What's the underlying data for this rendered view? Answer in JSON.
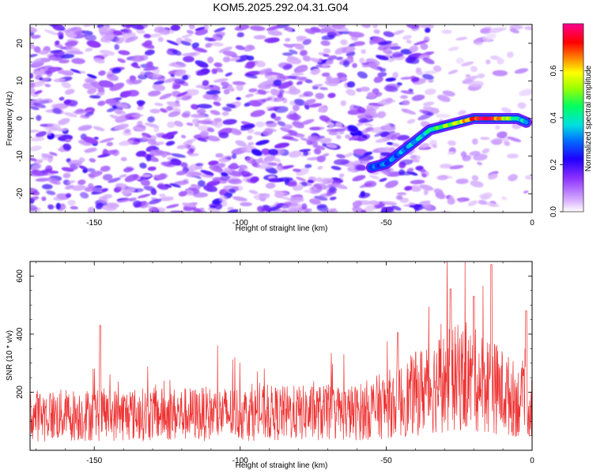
{
  "title": "KOM5.2025.292.04.31.G04",
  "chart_data": [
    {
      "type": "heatmap",
      "name": "spectrogram",
      "xlabel": "Height of straight line (km)",
      "ylabel": "Frequency (Hz)",
      "xlim": [
        -172,
        0
      ],
      "ylim": [
        -25,
        25
      ],
      "xticks": [
        -150,
        -100,
        -50,
        0
      ],
      "xtick_labels": [
        "-150",
        "-100",
        "-50",
        "0"
      ],
      "yticks": [
        -20,
        -10,
        0,
        10,
        20
      ],
      "ytick_labels": [
        "-20",
        "-10",
        "0",
        "10",
        "20"
      ],
      "colorbar": {
        "label": "Normalized spectral amplitude",
        "range": [
          0.0,
          0.8
        ],
        "ticks": [
          0.0,
          0.2,
          0.4,
          0.6
        ],
        "tick_labels": [
          "0.0",
          "0.2",
          "0.4",
          "0.6"
        ],
        "colors": [
          "#ffffff",
          "#c080ff",
          "#6000ff",
          "#0000ff",
          "#00c0ff",
          "#00ff80",
          "#80ff00",
          "#ffff00",
          "#ff8000",
          "#ff0000",
          "#ff0080"
        ]
      },
      "ridge": {
        "x": [
          -55,
          -50,
          -45,
          -40,
          -35,
          -30,
          -25,
          -20,
          -15,
          -10,
          -5,
          -2
        ],
        "y": [
          -13,
          -12,
          -9,
          -6,
          -3,
          -2,
          -1,
          0,
          0,
          0,
          0,
          -1
        ],
        "amplitude": [
          0.25,
          0.28,
          0.3,
          0.35,
          0.4,
          0.5,
          0.55,
          0.7,
          0.78,
          0.6,
          0.4,
          0.35
        ]
      },
      "noise_amplitude_range": [
        0.05,
        0.22
      ]
    },
    {
      "type": "line",
      "name": "snr",
      "xlabel": "Height of straight line (km)",
      "ylabel": "SNR (10 * v/v)",
      "xlim": [
        -172,
        0
      ],
      "ylim": [
        0,
        650
      ],
      "xticks": [
        -150,
        -100,
        -50,
        0
      ],
      "xtick_labels": [
        "-150",
        "-100",
        "-50",
        "0"
      ],
      "yticks": [
        200,
        400,
        600
      ],
      "ytick_labels": [
        "200",
        "400",
        "600"
      ],
      "series": [
        {
          "name": "SNR",
          "color": "#ee3333",
          "baseline": [
            [
              -172,
              120
            ],
            [
              -60,
              130
            ],
            [
              -45,
              170
            ],
            [
              -35,
              220
            ],
            [
              -25,
              250
            ],
            [
              -15,
              230
            ],
            [
              -5,
              170
            ],
            [
              0,
              150
            ]
          ],
          "peaks": [
            [
              -148,
              430
            ],
            [
              -46,
              405
            ],
            [
              -28,
              555
            ],
            [
              -20,
              530
            ],
            [
              -14,
              640
            ],
            [
              -2,
              480
            ]
          ]
        }
      ]
    }
  ]
}
